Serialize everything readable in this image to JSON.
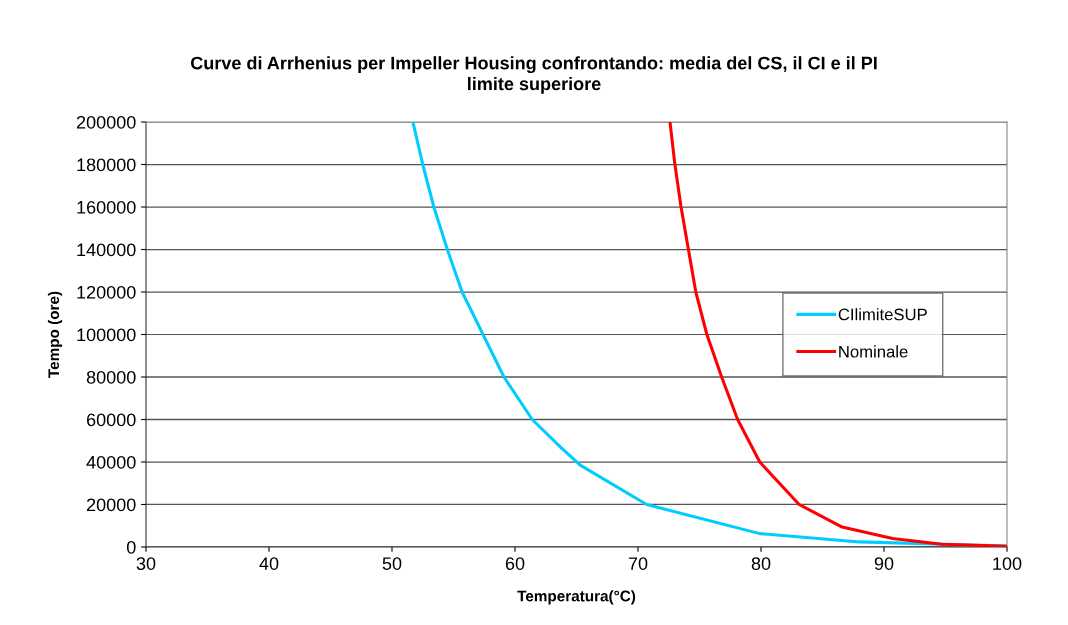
{
  "chart_data": {
    "type": "line",
    "title": "Curve di Arrhenius per Impeller Housing confrontando: media del CS, il CI e il PI\nlimite superiore",
    "xlabel": "Temperatura(°C)",
    "ylabel": "Tempo (ore)",
    "xlim": [
      30,
      100
    ],
    "xticks": [
      30,
      40,
      50,
      60,
      70,
      80,
      90,
      100
    ],
    "ylim": [
      0,
      200000
    ],
    "yticks": [
      0,
      20000,
      40000,
      60000,
      80000,
      100000,
      120000,
      140000,
      160000,
      180000,
      200000
    ],
    "grid": "y",
    "legend": "right",
    "marker": "none",
    "line_style": "solid",
    "series": [
      {
        "name": "CIlimiteSUP",
        "color": "#00ccff",
        "x": [
          51.7,
          52.5,
          53.4,
          54.5,
          55.7,
          57.4,
          59.1,
          61.4,
          63.7,
          65.3,
          70.7,
          79.9,
          88,
          99.9
        ],
        "values": [
          200000,
          180000,
          160000,
          140000,
          120000,
          100000,
          80000,
          60000,
          47000,
          38500,
          20000,
          6300,
          2400,
          500
        ]
      },
      {
        "name": "Nominale",
        "color": "#ff0000",
        "x": [
          72.6,
          73.0,
          73.5,
          74.1,
          74.7,
          75.6,
          76.8,
          78.1,
          79.9,
          83.1,
          86.6,
          90.7,
          94.7,
          100
        ],
        "values": [
          200000,
          180000,
          160000,
          140000,
          120000,
          100000,
          80000,
          60000,
          40000,
          20000,
          9400,
          4000,
          1300,
          300
        ]
      }
    ]
  }
}
